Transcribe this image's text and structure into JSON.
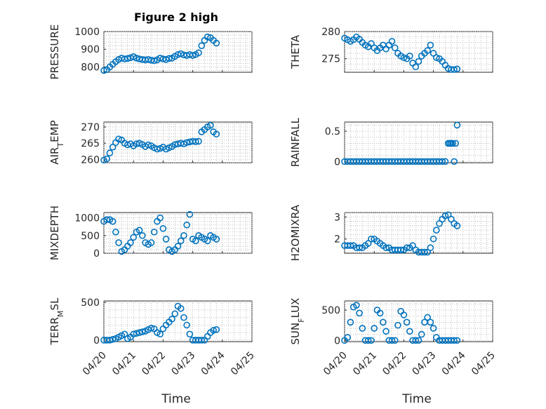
{
  "figure": {
    "title": "Figure 2 high",
    "marker_color": "#0072bd",
    "axis_color": "#262626",
    "x_axis_label": "Time",
    "x_ticks": [
      "04/20",
      "04/21",
      "04/22",
      "04/23",
      "04/24",
      "04/25"
    ]
  },
  "chart_data": [
    {
      "type": "scatter",
      "ylabel": "PRESSURE",
      "ylim": [
        770,
        1000
      ],
      "yticks": [
        800,
        900,
        1000
      ],
      "xlim": [
        0,
        5
      ],
      "grid": true,
      "x": [
        0,
        0.1,
        0.2,
        0.3,
        0.4,
        0.5,
        0.6,
        0.7,
        0.8,
        0.9,
        1.0,
        1.1,
        1.2,
        1.3,
        1.4,
        1.5,
        1.6,
        1.7,
        1.8,
        1.9,
        2.0,
        2.1,
        2.2,
        2.3,
        2.4,
        2.5,
        2.6,
        2.7,
        2.8,
        2.9,
        3.0,
        3.1,
        3.2,
        3.3,
        3.4,
        3.5,
        3.6,
        3.7,
        3.8
      ],
      "y": [
        780,
        785,
        800,
        815,
        830,
        842,
        850,
        845,
        848,
        852,
        858,
        850,
        845,
        842,
        840,
        842,
        838,
        835,
        840,
        850,
        845,
        842,
        848,
        850,
        860,
        870,
        875,
        868,
        865,
        870,
        865,
        870,
        880,
        920,
        950,
        970,
        965,
        950,
        935
      ]
    },
    {
      "type": "scatter",
      "ylabel": "THETA",
      "ylim": [
        272.5,
        280
      ],
      "yticks": [
        275,
        280
      ],
      "xlim": [
        0,
        5
      ],
      "grid": true,
      "x": [
        0,
        0.1,
        0.2,
        0.3,
        0.4,
        0.5,
        0.6,
        0.7,
        0.8,
        0.9,
        1.0,
        1.1,
        1.2,
        1.3,
        1.4,
        1.5,
        1.6,
        1.7,
        1.8,
        1.9,
        2.0,
        2.1,
        2.2,
        2.3,
        2.4,
        2.5,
        2.6,
        2.7,
        2.8,
        2.9,
        3.0,
        3.1,
        3.2,
        3.3,
        3.4,
        3.5,
        3.6,
        3.7,
        3.8
      ],
      "y": [
        278.8,
        278.5,
        278.2,
        278.5,
        279.0,
        278.6,
        278.0,
        277.5,
        277.2,
        277.8,
        277.0,
        276.5,
        277.0,
        277.5,
        276.8,
        277.5,
        278.2,
        277.0,
        276.0,
        275.5,
        275.2,
        275.0,
        275.5,
        274.2,
        273.5,
        274.5,
        275.5,
        276.0,
        276.5,
        277.5,
        276.0,
        275.2,
        275.0,
        274.5,
        273.8,
        273.2,
        273.0,
        273.0,
        273.1
      ]
    },
    {
      "type": "scatter",
      "ylabel": "AIR_TEMP",
      "ylim": [
        259,
        271.5
      ],
      "yticks": [
        260,
        265,
        270
      ],
      "xlim": [
        0,
        5
      ],
      "grid": true,
      "x": [
        0,
        0.1,
        0.2,
        0.3,
        0.4,
        0.5,
        0.6,
        0.7,
        0.8,
        0.9,
        1.0,
        1.1,
        1.2,
        1.3,
        1.4,
        1.5,
        1.6,
        1.7,
        1.8,
        1.9,
        2.0,
        2.1,
        2.2,
        2.3,
        2.4,
        2.5,
        2.6,
        2.7,
        2.8,
        2.9,
        3.0,
        3.1,
        3.2,
        3.3,
        3.4,
        3.5,
        3.6,
        3.7,
        3.8
      ],
      "y": [
        259.8,
        260.2,
        262.0,
        263.8,
        265.2,
        266.3,
        266.0,
        265.0,
        264.5,
        264.8,
        264.2,
        264.8,
        265.0,
        264.6,
        264.0,
        264.5,
        264.2,
        263.6,
        263.2,
        263.4,
        263.8,
        263.2,
        263.6,
        264.0,
        264.6,
        264.8,
        265.0,
        264.8,
        265.2,
        265.4,
        265.6,
        265.5,
        265.6,
        268.5,
        269.2,
        270.0,
        270.5,
        268.5,
        267.8
      ]
    },
    {
      "type": "scatter",
      "ylabel": "RAINFALL",
      "ylim": [
        -0.02,
        0.65
      ],
      "yticks": [
        0,
        0.5
      ],
      "xlim": [
        0,
        5
      ],
      "grid": true,
      "x": [
        0,
        0.1,
        0.2,
        0.3,
        0.4,
        0.5,
        0.6,
        0.7,
        0.8,
        0.9,
        1.0,
        1.1,
        1.2,
        1.3,
        1.4,
        1.5,
        1.6,
        1.7,
        1.8,
        1.9,
        2.0,
        2.1,
        2.2,
        2.3,
        2.4,
        2.5,
        2.6,
        2.7,
        2.8,
        2.9,
        3.0,
        3.1,
        3.2,
        3.3,
        3.4,
        3.5,
        3.55,
        3.6,
        3.65,
        3.7,
        3.75,
        3.8
      ],
      "y": [
        0,
        0,
        0,
        0,
        0,
        0,
        0,
        0,
        0,
        0,
        0,
        0,
        0,
        0,
        0,
        0,
        0,
        0,
        0,
        0,
        0,
        0,
        0,
        0,
        0,
        0,
        0,
        0,
        0,
        0,
        0,
        0,
        0,
        0,
        0,
        0.3,
        0.3,
        0.3,
        0.3,
        0,
        0.3,
        0.6
      ]
    },
    {
      "type": "scatter",
      "ylabel": "MIXDEPTH",
      "ylim": [
        0,
        1150
      ],
      "yticks": [
        0,
        500,
        1000
      ],
      "xlim": [
        0,
        5
      ],
      "grid": true,
      "x": [
        0,
        0.1,
        0.2,
        0.3,
        0.4,
        0.5,
        0.6,
        0.7,
        0.8,
        0.9,
        1.0,
        1.1,
        1.2,
        1.3,
        1.4,
        1.5,
        1.6,
        1.7,
        1.8,
        1.9,
        2.0,
        2.1,
        2.2,
        2.3,
        2.4,
        2.5,
        2.6,
        2.7,
        2.8,
        2.9,
        3.0,
        3.1,
        3.2,
        3.3,
        3.4,
        3.5,
        3.6,
        3.7,
        3.8
      ],
      "y": [
        900,
        950,
        950,
        900,
        600,
        300,
        50,
        100,
        200,
        300,
        450,
        600,
        650,
        500,
        300,
        250,
        300,
        600,
        900,
        1000,
        700,
        400,
        100,
        50,
        100,
        200,
        350,
        500,
        800,
        1100,
        400,
        350,
        500,
        450,
        400,
        350,
        500,
        450,
        400
      ]
    },
    {
      "type": "scatter",
      "ylabel": "H2OMIXRA",
      "ylim": [
        1.35,
        3.2
      ],
      "yticks": [
        2,
        3
      ],
      "xlim": [
        0,
        5
      ],
      "grid": true,
      "x": [
        0,
        0.1,
        0.2,
        0.3,
        0.4,
        0.5,
        0.6,
        0.7,
        0.8,
        0.9,
        1.0,
        1.1,
        1.2,
        1.3,
        1.4,
        1.5,
        1.6,
        1.7,
        1.8,
        1.9,
        2.0,
        2.1,
        2.2,
        2.3,
        2.4,
        2.5,
        2.6,
        2.7,
        2.8,
        2.9,
        3.0,
        3.1,
        3.2,
        3.3,
        3.4,
        3.5,
        3.6,
        3.7,
        3.8
      ],
      "y": [
        1.7,
        1.7,
        1.7,
        1.7,
        1.6,
        1.6,
        1.6,
        1.7,
        1.8,
        2.0,
        2.0,
        1.9,
        1.8,
        1.7,
        1.6,
        1.6,
        1.5,
        1.5,
        1.5,
        1.5,
        1.5,
        1.6,
        1.6,
        1.7,
        1.5,
        1.4,
        1.4,
        1.4,
        1.4,
        1.6,
        2.0,
        2.4,
        2.7,
        2.9,
        3.05,
        3.1,
        2.9,
        2.7,
        2.6
      ]
    },
    {
      "type": "scatter",
      "ylabel": "TERR_MSL",
      "ylim": [
        -20,
        520
      ],
      "yticks": [
        0,
        500
      ],
      "xlim": [
        0,
        5
      ],
      "grid": true,
      "x": [
        0,
        0.1,
        0.2,
        0.3,
        0.4,
        0.5,
        0.6,
        0.7,
        0.8,
        0.9,
        1.0,
        1.1,
        1.2,
        1.3,
        1.4,
        1.5,
        1.6,
        1.7,
        1.8,
        1.9,
        2.0,
        2.1,
        2.2,
        2.3,
        2.4,
        2.5,
        2.6,
        2.7,
        2.8,
        2.9,
        3.0,
        3.1,
        3.2,
        3.3,
        3.4,
        3.5,
        3.6,
        3.7,
        3.8
      ],
      "y": [
        0,
        0,
        0,
        10,
        20,
        40,
        60,
        80,
        20,
        40,
        80,
        90,
        100,
        110,
        120,
        140,
        160,
        150,
        100,
        80,
        150,
        200,
        240,
        280,
        350,
        450,
        420,
        300,
        200,
        80,
        0,
        0,
        0,
        0,
        0,
        50,
        100,
        130,
        140
      ]
    },
    {
      "type": "scatter",
      "ylabel": "SUN_FLUX",
      "ylim": [
        -20,
        650
      ],
      "yticks": [
        0,
        500
      ],
      "xlim": [
        0,
        5
      ],
      "grid": true,
      "x": [
        0,
        0.1,
        0.2,
        0.3,
        0.4,
        0.5,
        0.6,
        0.7,
        0.8,
        0.9,
        1.0,
        1.1,
        1.2,
        1.3,
        1.4,
        1.5,
        1.6,
        1.7,
        1.8,
        1.9,
        2.0,
        2.1,
        2.2,
        2.3,
        2.4,
        2.5,
        2.6,
        2.7,
        2.8,
        2.9,
        3.0,
        3.1,
        3.2,
        3.3,
        3.4,
        3.5,
        3.6,
        3.7,
        3.8
      ],
      "y": [
        0,
        50,
        300,
        550,
        580,
        450,
        200,
        0,
        0,
        0,
        200,
        500,
        450,
        300,
        150,
        0,
        0,
        0,
        250,
        480,
        420,
        300,
        150,
        0,
        0,
        0,
        100,
        300,
        380,
        300,
        200,
        50,
        0,
        0,
        0,
        0,
        0,
        0,
        0
      ]
    }
  ]
}
